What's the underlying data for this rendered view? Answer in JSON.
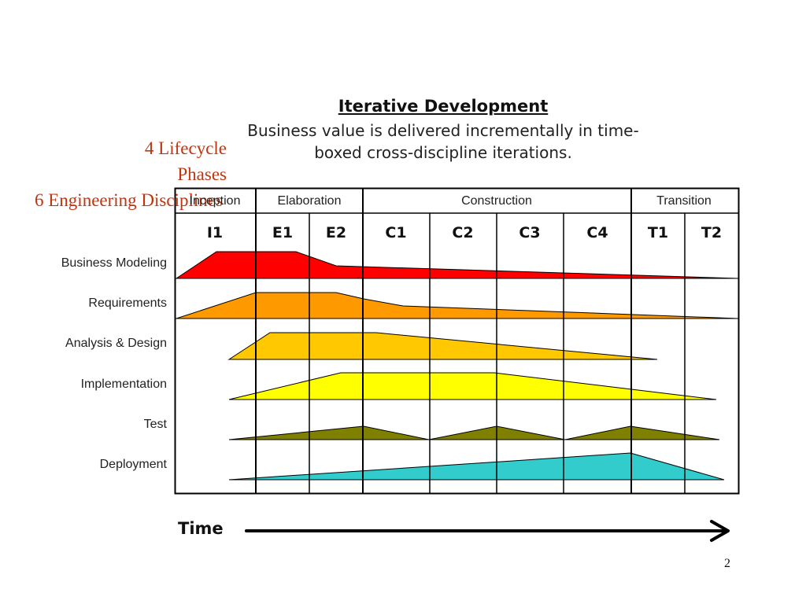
{
  "title": "Iterative Development",
  "subtitle": "Business value is delivered incrementally in time-boxed cross-discipline iterations.",
  "notes": {
    "lifecycle": "4 Lifecycle Phases",
    "disciplines": "6 Engineering Disciplines"
  },
  "phases": [
    {
      "label": "Inception",
      "iterations": [
        "I1"
      ]
    },
    {
      "label": "Elaboration",
      "iterations": [
        "E1",
        "E2"
      ]
    },
    {
      "label": "Construction",
      "iterations": [
        "C1",
        "C2",
        "C3",
        "C4"
      ]
    },
    {
      "label": "Transition",
      "iterations": [
        "T1",
        "T2"
      ]
    }
  ],
  "iterations": [
    "I1",
    "E1",
    "E2",
    "C1",
    "C2",
    "C3",
    "C4",
    "T1",
    "T2"
  ],
  "disciplines": [
    {
      "label": "Business Modeling",
      "color": "#ff0000"
    },
    {
      "label": "Requirements",
      "color": "#ff9900"
    },
    {
      "label": "Analysis & Design",
      "color": "#ffc800"
    },
    {
      "label": "Implementation",
      "color": "#ffff00"
    },
    {
      "label": "Test",
      "color": "#808000"
    },
    {
      "label": "Deployment",
      "color": "#33cccc"
    }
  ],
  "time_label": "Time",
  "page_number": "2"
}
